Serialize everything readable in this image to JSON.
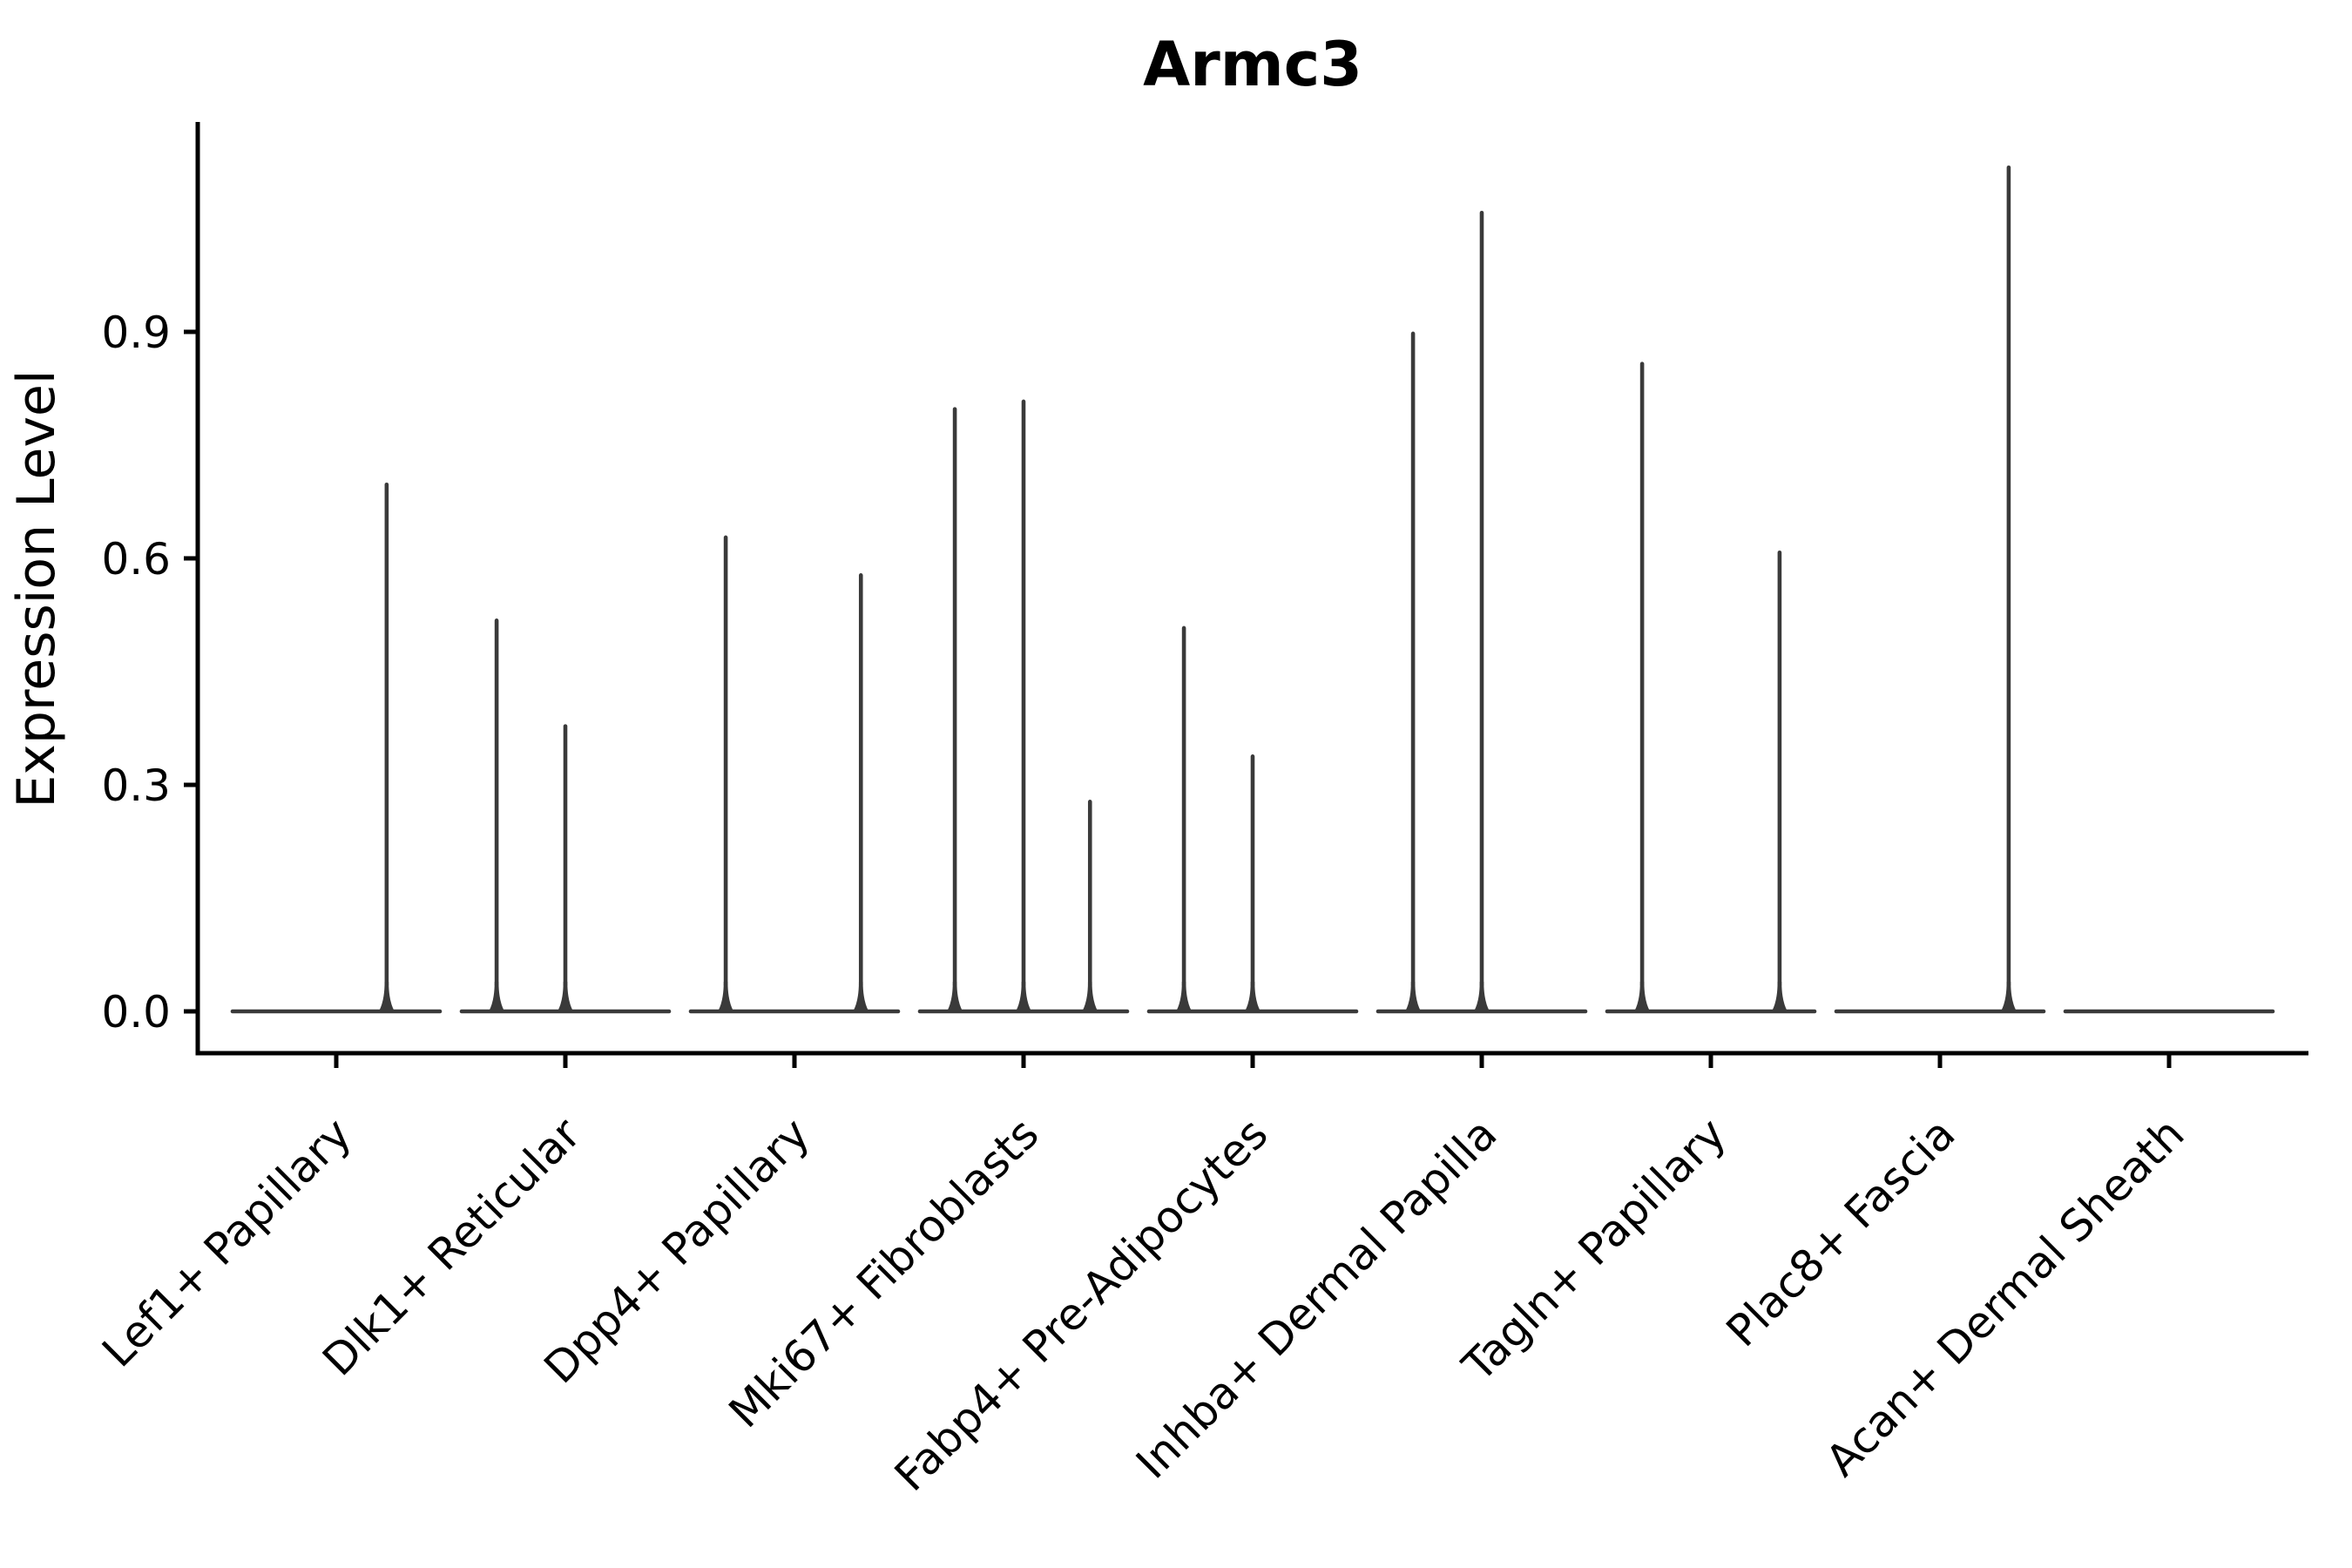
{
  "figure": {
    "background": "#ffffff"
  },
  "chart_data": {
    "type": "violin",
    "title": "Armc3",
    "xlabel": "",
    "ylabel": "Expression Level",
    "categories": [
      "Lef1+ Papillary",
      "Dlk1+ Reticular",
      "Dpp4+ Papillary",
      "Mki67+ Fibroblasts",
      "Fabp4+ Pre-Adipocytes",
      "Inhba+ Dermal Papilla",
      "Tagln+ Papillary",
      "Plac8+ Fascia",
      "Acan+ Dermal Sheath"
    ],
    "y_ticks": [
      0.0,
      0.3,
      0.6,
      0.9
    ],
    "y_tick_labels": [
      "0.0",
      "0.3",
      "0.6",
      "0.9"
    ],
    "ylim": [
      -0.06,
      1.18
    ],
    "x_tick_rotation_deg": 45,
    "grid": false,
    "legend_position": "none",
    "violin_width": 0.9,
    "baseline_value": 0.0,
    "violins": [
      {
        "category": "Lef1+ Papillary",
        "spikes": [
          {
            "offset": 0.22,
            "value": 0.7
          }
        ]
      },
      {
        "category": "Dlk1+ Reticular",
        "spikes": [
          {
            "offset": -0.3,
            "value": 0.52
          },
          {
            "offset": 0.0,
            "value": 0.38
          }
        ]
      },
      {
        "category": "Dpp4+ Papillary",
        "spikes": [
          {
            "offset": -0.3,
            "value": 0.63
          },
          {
            "offset": 0.29,
            "value": 0.58
          }
        ]
      },
      {
        "category": "Mki67+ Fibroblasts",
        "spikes": [
          {
            "offset": -0.3,
            "value": 0.8
          },
          {
            "offset": 0.0,
            "value": 0.81
          },
          {
            "offset": 0.29,
            "value": 0.28
          }
        ]
      },
      {
        "category": "Fabp4+ Pre-Adipocytes",
        "spikes": [
          {
            "offset": -0.3,
            "value": 0.51
          },
          {
            "offset": 0.0,
            "value": 0.34
          }
        ]
      },
      {
        "category": "Inhba+ Dermal Papilla",
        "spikes": [
          {
            "offset": -0.3,
            "value": 0.9
          },
          {
            "offset": 0.0,
            "value": 1.06
          }
        ]
      },
      {
        "category": "Tagln+ Papillary",
        "spikes": [
          {
            "offset": -0.3,
            "value": 0.86
          },
          {
            "offset": 0.3,
            "value": 0.61
          }
        ]
      },
      {
        "category": "Plac8+ Fascia",
        "spikes": [
          {
            "offset": 0.3,
            "value": 1.12
          }
        ]
      },
      {
        "category": "Acan+ Dermal Sheath",
        "spikes": []
      }
    ],
    "colors": {
      "violin": "#3a3a3a",
      "axis": "#000000",
      "text": "#000000",
      "background": "#ffffff"
    }
  }
}
